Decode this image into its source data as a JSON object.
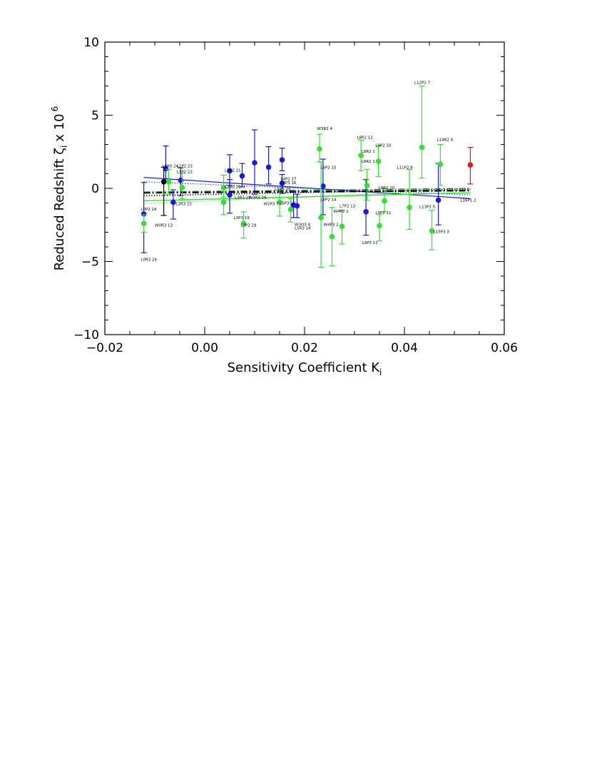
{
  "chart_data": {
    "type": "scatter",
    "title": "",
    "xlabel": "Sensitivity Coefficient K",
    "xlabel_subscript": "i",
    "ylabel": "Reduced Redshift ζ",
    "ylabel_subscript": "i",
    "ylabel_suffix": "x 10",
    "ylabel_exponent": "6",
    "xlim": [
      -0.02,
      0.06
    ],
    "ylim": [
      -10,
      10
    ],
    "xticks": [
      {
        "v": -0.02,
        "label": "−0.02"
      },
      {
        "v": 0.0,
        "label": "0.00"
      },
      {
        "v": 0.02,
        "label": "0.02"
      },
      {
        "v": 0.04,
        "label": "0.04"
      },
      {
        "v": 0.06,
        "label": "0.06"
      }
    ],
    "yticks": [
      {
        "v": 10,
        "label": "10"
      },
      {
        "v": 5,
        "label": "5"
      },
      {
        "v": 0,
        "label": "0"
      },
      {
        "v": -5,
        "label": "−5"
      },
      {
        "v": -10,
        "label": "−10"
      }
    ],
    "series": [
      {
        "name": "blue",
        "color": "#1a1ad8",
        "points": [
          {
            "x": -0.0122,
            "y": -1.75,
            "lo": -4.4,
            "hi": 0.4
          },
          {
            "x": -0.0078,
            "y": 1.35,
            "lo": 0.4,
            "hi": 2.9
          },
          {
            "x": -0.0063,
            "y": -0.95,
            "lo": -2.1,
            "hi": -0.1
          },
          {
            "x": -0.0048,
            "y": 0.55,
            "lo": -0.5,
            "hi": 1.4
          },
          {
            "x": 0.005,
            "y": 1.2,
            "lo": 0.2,
            "hi": 2.3
          },
          {
            "x": 0.005,
            "y": -0.45,
            "lo": -1.7,
            "hi": 0.6
          },
          {
            "x": 0.0075,
            "y": 0.85,
            "lo": 0.1,
            "hi": 1.7
          },
          {
            "x": 0.01,
            "y": 1.75,
            "lo": -0.4,
            "hi": 4.0
          },
          {
            "x": 0.0128,
            "y": 1.45,
            "lo": 0.3,
            "hi": 2.85
          },
          {
            "x": 0.0155,
            "y": 1.95,
            "lo": 1.2,
            "hi": 2.75
          },
          {
            "x": 0.0155,
            "y": 0.35,
            "lo": -0.35,
            "hi": 0.95
          },
          {
            "x": 0.0178,
            "y": -1.15,
            "lo": -2.0,
            "hi": -0.2
          },
          {
            "x": 0.0185,
            "y": -1.2,
            "lo": -2.0,
            "hi": -0.4
          },
          {
            "x": 0.0237,
            "y": 0.15,
            "lo": -1.8,
            "hi": 2.0
          },
          {
            "x": 0.0323,
            "y": -1.6,
            "lo": -3.2,
            "hi": 0.6
          },
          {
            "x": 0.0468,
            "y": -0.8,
            "lo": -2.5,
            "hi": 1.7
          }
        ]
      },
      {
        "name": "green",
        "color": "#33e033",
        "points": [
          {
            "x": -0.0122,
            "y": -2.4,
            "lo": -3.0,
            "hi": -1.8
          },
          {
            "x": -0.0072,
            "y": 0.45,
            "lo": -0.4,
            "hi": 1.3
          },
          {
            "x": -0.0045,
            "y": 0.05,
            "lo": -0.7,
            "hi": 1.05
          },
          {
            "x": 0.0038,
            "y": -0.95,
            "lo": -1.8,
            "hi": -0.2
          },
          {
            "x": 0.0038,
            "y": 0.05,
            "lo": -0.6,
            "hi": 0.9
          },
          {
            "x": 0.0078,
            "y": -2.4,
            "lo": -3.4,
            "hi": -1.6
          },
          {
            "x": 0.015,
            "y": -0.95,
            "lo": -1.9,
            "hi": -0.1
          },
          {
            "x": 0.0172,
            "y": -1.45,
            "lo": -2.3,
            "hi": -0.7
          },
          {
            "x": 0.023,
            "y": 2.7,
            "lo": 1.8,
            "hi": 3.7
          },
          {
            "x": 0.0233,
            "y": -2.0,
            "lo": -5.4,
            "hi": 1.8
          },
          {
            "x": 0.0255,
            "y": -3.3,
            "lo": -5.3,
            "hi": -1.3
          },
          {
            "x": 0.0275,
            "y": -2.6,
            "lo": -3.8,
            "hi": -1.5
          },
          {
            "x": 0.0313,
            "y": 2.25,
            "lo": 1.2,
            "hi": 3.3
          },
          {
            "x": 0.0325,
            "y": 0.2,
            "lo": -0.8,
            "hi": 1.3
          },
          {
            "x": 0.0348,
            "y": 1.85,
            "lo": 0.8,
            "hi": 2.9
          },
          {
            "x": 0.035,
            "y": -2.55,
            "lo": -3.6,
            "hi": -1.8
          },
          {
            "x": 0.036,
            "y": -0.85,
            "lo": -1.6,
            "hi": 0.0
          },
          {
            "x": 0.041,
            "y": -1.3,
            "lo": -2.8,
            "hi": 1.3
          },
          {
            "x": 0.0435,
            "y": 2.8,
            "lo": 0.7,
            "hi": 7.0
          },
          {
            "x": 0.0455,
            "y": -2.9,
            "lo": -4.2,
            "hi": -1.5
          },
          {
            "x": 0.0472,
            "y": 1.65,
            "lo": 0.2,
            "hi": 3.0
          }
        ]
      },
      {
        "name": "black",
        "color": "#000000",
        "points": [
          {
            "x": -0.0082,
            "y": 0.45,
            "lo": -1.85,
            "hi": 1.45
          }
        ]
      },
      {
        "name": "red",
        "color": "#e01818",
        "points": [
          {
            "x": 0.0532,
            "y": 1.6,
            "lo": 0.3,
            "hi": 2.8
          }
        ]
      }
    ],
    "fit_lines": [
      {
        "name": "blue-solid-fit",
        "color": "#1a1ad8",
        "style": "solid",
        "width": 1.2,
        "x": [
          -0.0122,
          0.0532
        ],
        "y": [
          0.75,
          -0.7
        ]
      },
      {
        "name": "blue-dotted-fit",
        "color": "#1a1ad8",
        "style": "dotted",
        "width": 1.2,
        "x": [
          -0.0122,
          0.0532
        ],
        "y": [
          0.45,
          -0.45
        ]
      },
      {
        "name": "green-solid-fit",
        "color": "#33e033",
        "style": "solid",
        "width": 1.4,
        "x": [
          -0.0122,
          0.0532
        ],
        "y": [
          -0.85,
          -0.3
        ]
      },
      {
        "name": "green-dotted-fit",
        "color": "#33e033",
        "style": "dotted",
        "width": 1.2,
        "x": [
          -0.0122,
          0.0532
        ],
        "y": [
          -1.05,
          -0.1
        ]
      },
      {
        "name": "black-dashdot-fit",
        "color": "#000000",
        "style": "dashdot",
        "width": 2.4,
        "x": [
          -0.0122,
          0.0532
        ],
        "y": [
          -0.3,
          -0.15
        ]
      },
      {
        "name": "black-dotted-fit",
        "color": "#000000",
        "style": "dotted",
        "width": 1.8,
        "x": [
          -0.0122,
          0.0532
        ],
        "y": [
          -0.5,
          -0.05
        ]
      },
      {
        "name": "darkgreen-dashdot-fit",
        "color": "#1a6a1a",
        "style": "dashdot",
        "width": 1.2,
        "x": [
          -0.0122,
          0.0532
        ],
        "y": [
          -0.25,
          0.0
        ]
      }
    ],
    "annotations": [
      {
        "text": "L0R0 24",
        "x": -0.0085,
        "y": 1.45
      },
      {
        "text": "L1P2 23",
        "x": -0.0056,
        "y": 1.45
      },
      {
        "text": "L1P2 22",
        "x": -0.0056,
        "y": 1.05
      },
      {
        "text": "L0P2 24",
        "x": -0.0128,
        "y": -1.5
      },
      {
        "text": "L0R3 24",
        "x": -0.0128,
        "y": -4.95
      },
      {
        "text": "L1R3 22",
        "x": -0.0058,
        "y": -1.15
      },
      {
        "text": "W0R3 13",
        "x": -0.01,
        "y": -2.6
      },
      {
        "text": "L2R2 21",
        "x": 0.004,
        "y": 1.15
      },
      {
        "text": "L2R0 20",
        "x": 0.004,
        "y": 0.0
      },
      {
        "text": "L3R3 19",
        "x": 0.006,
        "y": -0.7
      },
      {
        "text": "W3R3 16",
        "x": 0.0088,
        "y": -0.7
      },
      {
        "text": "L3P3 19",
        "x": 0.0058,
        "y": -2.1
      },
      {
        "text": "L3P2 19",
        "x": 0.0072,
        "y": -2.6
      },
      {
        "text": "W2P3 7",
        "x": 0.0118,
        "y": -1.15
      },
      {
        "text": "L4P2 17",
        "x": 0.0152,
        "y": 0.55
      },
      {
        "text": "L4P3 16",
        "x": 0.0152,
        "y": 0.3
      },
      {
        "text": "L3R3 16",
        "x": 0.014,
        "y": -0.15
      },
      {
        "text": "L5P3 18",
        "x": 0.015,
        "y": -1.1
      },
      {
        "text": "W3O3 4",
        "x": 0.018,
        "y": -2.55
      },
      {
        "text": "L5R3 18",
        "x": 0.018,
        "y": -2.8
      },
      {
        "text": "W3R2 4",
        "x": 0.0225,
        "y": 4.0
      },
      {
        "text": "L6P2 15",
        "x": 0.0232,
        "y": 1.35
      },
      {
        "text": "L6P2 14",
        "x": 0.0232,
        "y": -0.85
      },
      {
        "text": "W4P2 2",
        "x": 0.0258,
        "y": -1.65
      },
      {
        "text": "L7P2 13",
        "x": 0.027,
        "y": -1.3
      },
      {
        "text": "W4P3 2",
        "x": 0.0238,
        "y": -2.55
      },
      {
        "text": "L8P2 12",
        "x": 0.0305,
        "y": 3.4
      },
      {
        "text": "L8R2 1",
        "x": 0.0314,
        "y": 2.45
      },
      {
        "text": "L8R2 1",
        "x": 0.0314,
        "y": 1.75
      },
      {
        "text": "L9P2 10",
        "x": 0.0342,
        "y": 2.85
      },
      {
        "text": "L9R2 10",
        "x": 0.0348,
        "y": -0.05
      },
      {
        "text": "L9P2 11",
        "x": 0.0342,
        "y": -1.75
      },
      {
        "text": "L9P3 11",
        "x": 0.0315,
        "y": -3.8
      },
      {
        "text": "L11P2 8",
        "x": 0.0385,
        "y": 1.35
      },
      {
        "text": "L12P2 7",
        "x": 0.042,
        "y": 7.15
      },
      {
        "text": "L14R2 4",
        "x": 0.0465,
        "y": 3.25
      },
      {
        "text": "L13P2 5",
        "x": 0.043,
        "y": -1.35
      },
      {
        "text": "L15P3 3",
        "x": 0.0458,
        "y": -3.05
      },
      {
        "text": "L16P1 2",
        "x": 0.0512,
        "y": -0.9
      }
    ]
  }
}
